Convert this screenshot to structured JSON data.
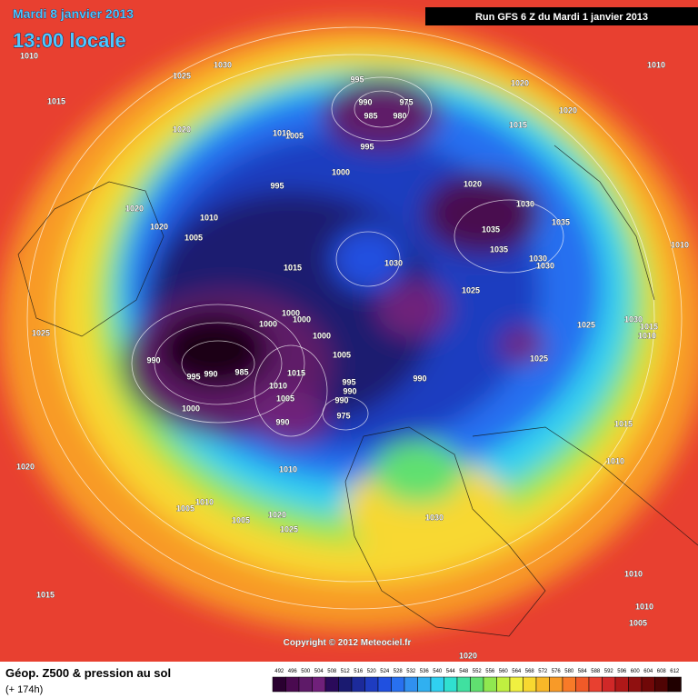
{
  "header": {
    "date": "Mardi 8 janvier 2013",
    "time": "13:00 locale",
    "run": "Run GFS 6 Z du Mardi 1 janvier 2013"
  },
  "isobar_labels": [
    1010,
    1025,
    1030,
    1015,
    1020,
    995,
    990,
    975,
    985,
    980,
    995,
    1010,
    1005,
    1000,
    995,
    1020,
    1015,
    1020,
    1010,
    1020,
    1030,
    1035,
    1035,
    1035,
    1030,
    1030,
    1010,
    1020,
    1020,
    1010,
    1005,
    1015,
    1030,
    1025,
    1000,
    1000,
    1000,
    1000,
    1025,
    1030,
    1015,
    1010,
    1025,
    1005,
    990,
    995,
    990,
    985,
    1015,
    1010,
    995,
    990,
    990,
    1005,
    990,
    1000,
    975,
    990,
    1015,
    1010,
    1010,
    1020,
    1010,
    1005,
    1005,
    1020,
    1025,
    1030,
    1015,
    1010,
    1010,
    1005,
    1020,
    1025
  ],
  "copyright": "Copyright © 2012 Meteociel.fr",
  "footer": {
    "title": "Géop. Z500 & pression au sol",
    "lead": "(+ 174h)"
  },
  "legend": {
    "labels": [
      492,
      496,
      500,
      504,
      508,
      512,
      516,
      520,
      524,
      528,
      532,
      536,
      540,
      544,
      548,
      552,
      556,
      560,
      564,
      568,
      572,
      576,
      580,
      584,
      588,
      592,
      596,
      600,
      604,
      608,
      612
    ],
    "colors": [
      "#2a0030",
      "#4a0a50",
      "#5e1a68",
      "#70207a",
      "#2a0a5a",
      "#1a1a70",
      "#1c2a9a",
      "#1e3cc0",
      "#2050e0",
      "#2870f0",
      "#3090f0",
      "#30b0f0",
      "#30d0f0",
      "#30e0d0",
      "#40e0a0",
      "#60e070",
      "#90e850",
      "#c0f040",
      "#f0f040",
      "#f8d830",
      "#f8b828",
      "#f89a28",
      "#f87a28",
      "#f05a28",
      "#e84030",
      "#d02828",
      "#b01818",
      "#901010",
      "#700808",
      "#500404",
      "#200000"
    ]
  }
}
